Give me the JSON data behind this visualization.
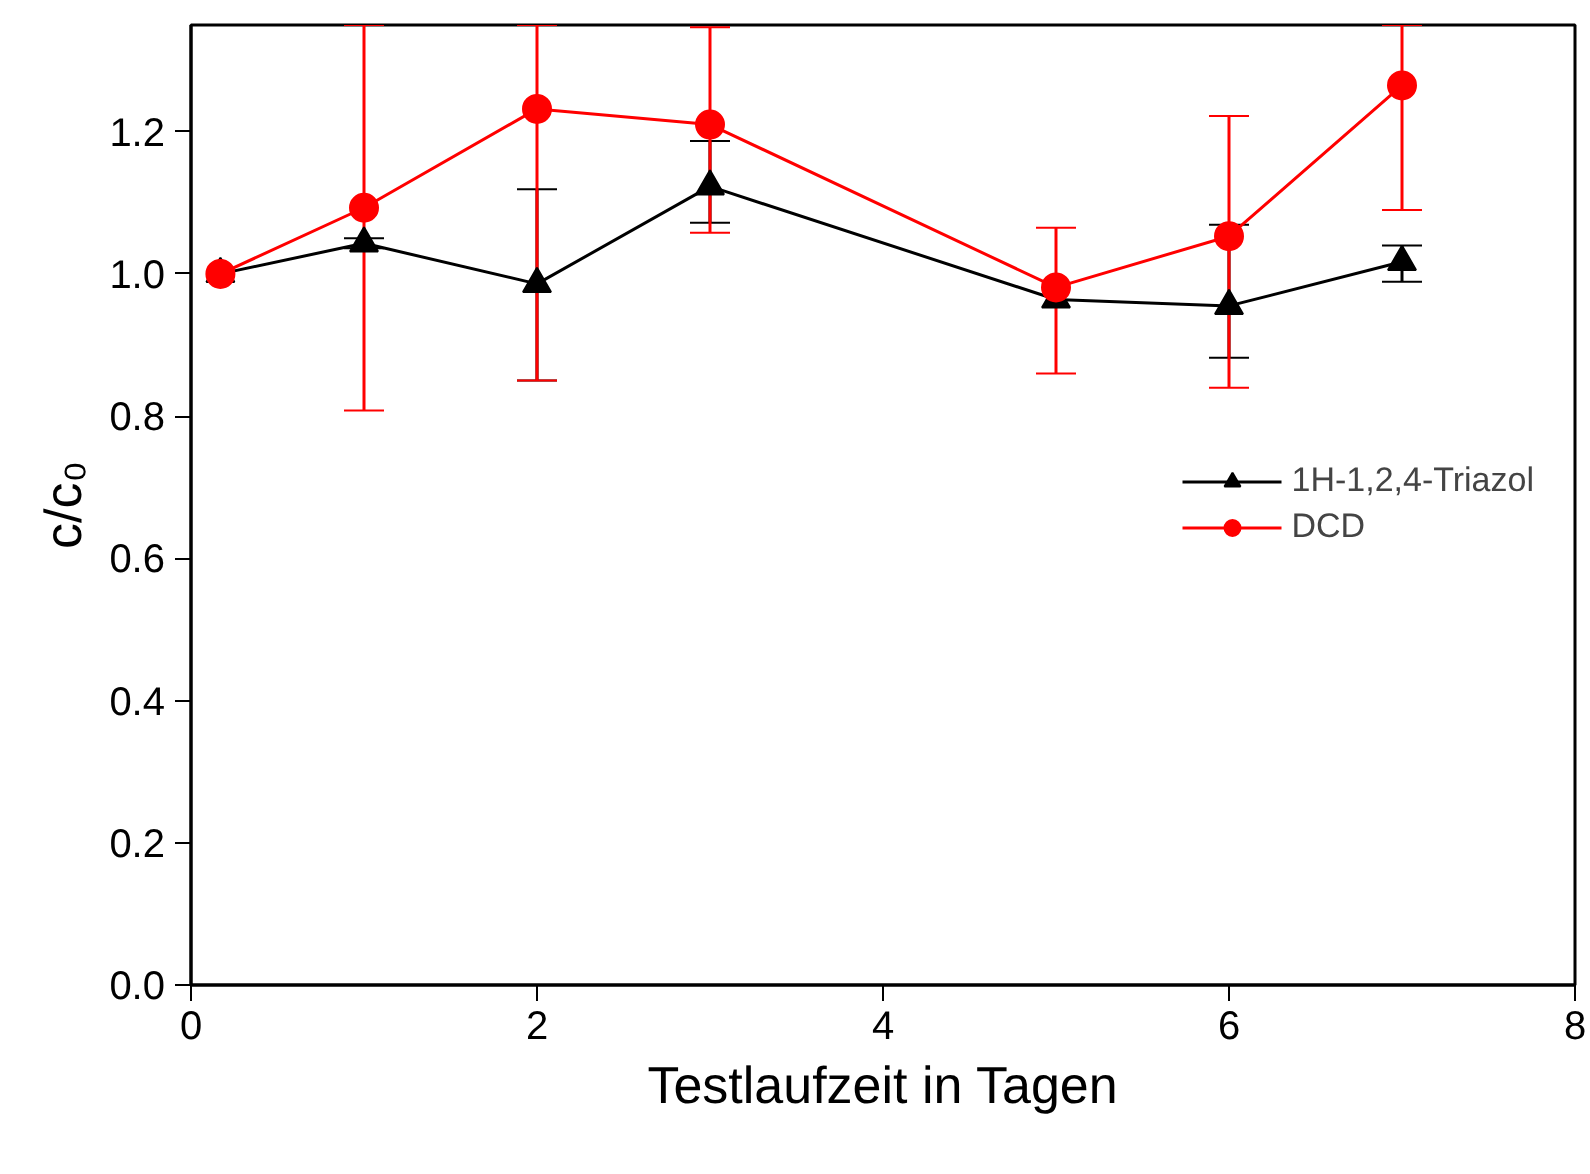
{
  "chart_data": {
    "type": "line",
    "xlabel": "Testlaufzeit in Tagen",
    "ylabel": "c/c₀",
    "x": [
      0.17,
      1,
      2,
      3,
      5,
      6,
      7
    ],
    "series": [
      {
        "name": "1H-1,2,4-Triazol",
        "color": "#000000",
        "marker": "triangle",
        "values": [
          1.0,
          1.043,
          0.986,
          1.123,
          0.964,
          0.955,
          1.017
        ],
        "errors": [
          null,
          [
            1.036,
            1.05
          ],
          [
            0.85,
            1.119
          ],
          [
            1.072,
            1.187
          ],
          null,
          [
            0.882,
            1.069
          ],
          [
            0.989,
            1.04
          ]
        ]
      },
      {
        "name": "DCD",
        "color": "#ff0000",
        "marker": "circle",
        "values": [
          1.0,
          1.093,
          1.232,
          1.21,
          0.981,
          1.053,
          1.265
        ],
        "errors": [
          null,
          [
            0.808,
            1.35
          ],
          [
            0.85,
            1.35
          ],
          [
            1.058,
            1.347
          ],
          [
            0.86,
            1.065
          ],
          [
            0.84,
            1.222
          ],
          [
            1.09,
            1.35
          ]
        ]
      }
    ],
    "xlim": [
      0,
      8
    ],
    "xticks": [
      0,
      2,
      4,
      6,
      8
    ],
    "ylim": [
      0,
      1.35
    ],
    "yticks": [
      {
        "value": 0,
        "label": "0.0"
      },
      0.2,
      0.4,
      0.6,
      0.8,
      {
        "value": 1,
        "label": "1.0"
      },
      1.2
    ],
    "grid": false,
    "legend": "right"
  }
}
